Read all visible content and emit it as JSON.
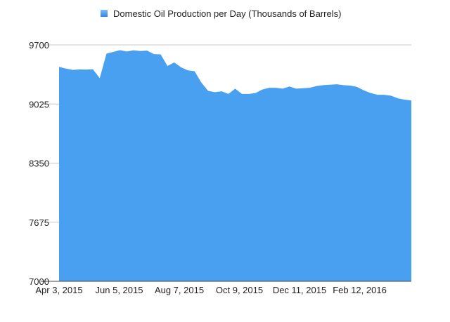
{
  "chart_data": {
    "type": "area",
    "x_tick_labels": [
      "Apr 3, 2015",
      "Jun 5, 2015",
      "Aug 7, 2015",
      "Oct 9, 2015",
      "Dec 11, 2015",
      "Feb 12, 2016"
    ],
    "y_ticks": [
      7000,
      7675,
      8350,
      9025,
      9700
    ],
    "ylim": [
      7000,
      9700
    ],
    "grid": true,
    "legend_position": "top-center",
    "series": [
      {
        "name": "Domestic Oil Production per Day (Thousands of Barrels)",
        "color": "#4aa0f0",
        "values": [
          9450,
          9430,
          9415,
          9420,
          9418,
          9422,
          9320,
          9600,
          9620,
          9640,
          9625,
          9638,
          9630,
          9635,
          9595,
          9592,
          9460,
          9500,
          9445,
          9410,
          9400,
          9270,
          9175,
          9160,
          9170,
          9140,
          9200,
          9140,
          9140,
          9150,
          9190,
          9210,
          9210,
          9200,
          9225,
          9200,
          9205,
          9210,
          9230,
          9240,
          9245,
          9250,
          9240,
          9235,
          9220,
          9180,
          9150,
          9130,
          9130,
          9120,
          9090,
          9075,
          9065
        ]
      }
    ]
  }
}
